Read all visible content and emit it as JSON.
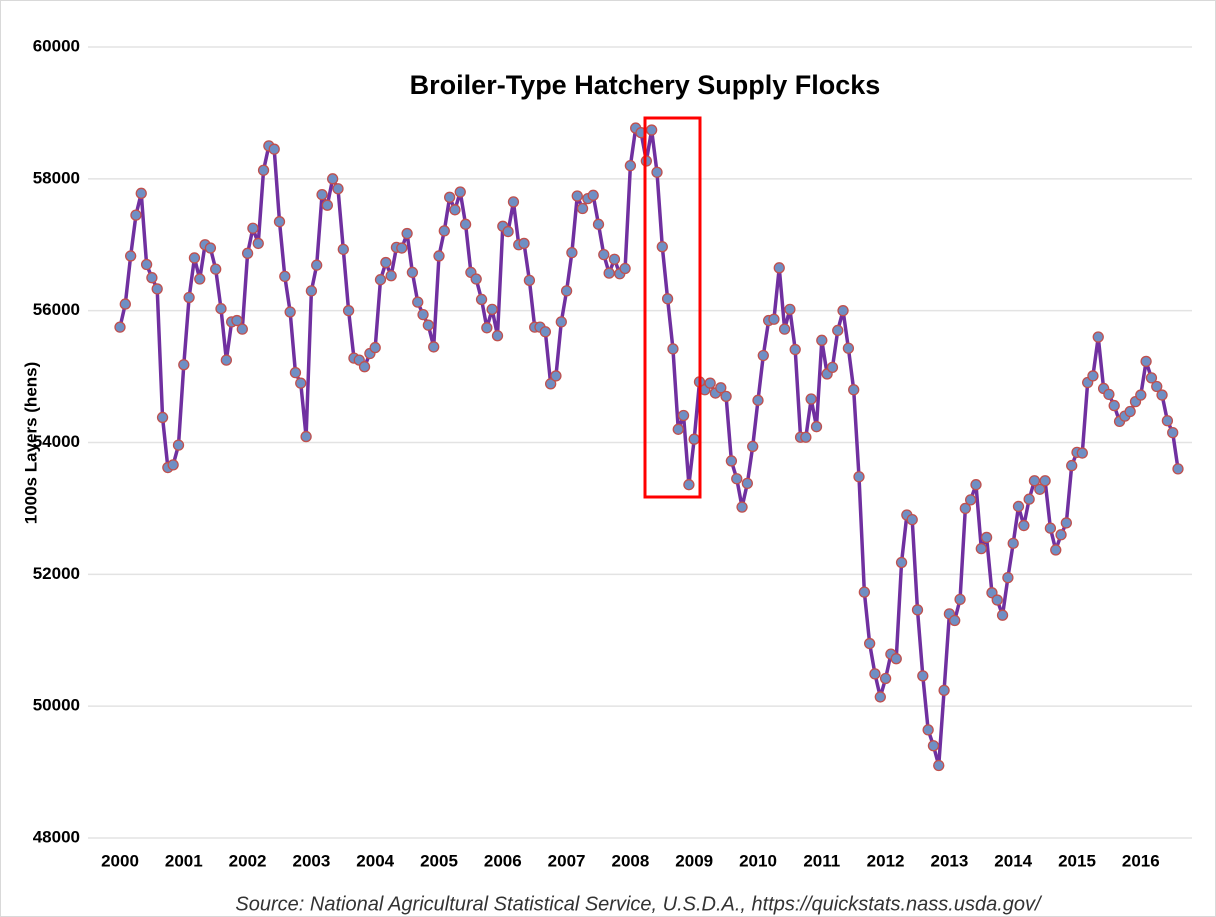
{
  "chart_data": {
    "type": "line",
    "title": "Broiler-Type Hatchery Supply Flocks",
    "y_label": "1000s Layers (hens)",
    "source": "Source: National Agricultural Statistical Service, U.S.D.A., https://quickstats.nass.usda.gov/",
    "xlim": [
      2000,
      2016.75
    ],
    "xticks": [
      2000,
      2001,
      2002,
      2003,
      2004,
      2005,
      2006,
      2007,
      2008,
      2009,
      2010,
      2011,
      2012,
      2013,
      2014,
      2015,
      2016
    ],
    "ylim": [
      48000,
      60000
    ],
    "yticks": [
      48000,
      50000,
      52000,
      54000,
      56000,
      58000,
      60000
    ],
    "grid": true,
    "x": [
      2000,
      2000.083,
      2000.167,
      2000.25,
      2000.333,
      2000.417,
      2000.5,
      2000.583,
      2000.667,
      2000.75,
      2000.833,
      2000.917,
      2001,
      2001.083,
      2001.167,
      2001.25,
      2001.333,
      2001.417,
      2001.5,
      2001.583,
      2001.667,
      2001.75,
      2001.833,
      2001.917,
      2002,
      2002.083,
      2002.167,
      2002.25,
      2002.333,
      2002.417,
      2002.5,
      2002.583,
      2002.667,
      2002.75,
      2002.833,
      2002.917,
      2003,
      2003.083,
      2003.167,
      2003.25,
      2003.333,
      2003.417,
      2003.5,
      2003.583,
      2003.667,
      2003.75,
      2003.833,
      2003.917,
      2004,
      2004.083,
      2004.167,
      2004.25,
      2004.333,
      2004.417,
      2004.5,
      2004.583,
      2004.667,
      2004.75,
      2004.833,
      2004.917,
      2005,
      2005.083,
      2005.167,
      2005.25,
      2005.333,
      2005.417,
      2005.5,
      2005.583,
      2005.667,
      2005.75,
      2005.833,
      2005.917,
      2006,
      2006.083,
      2006.167,
      2006.25,
      2006.333,
      2006.417,
      2006.5,
      2006.583,
      2006.667,
      2006.75,
      2006.833,
      2006.917,
      2007,
      2007.083,
      2007.167,
      2007.25,
      2007.333,
      2007.417,
      2007.5,
      2007.583,
      2007.667,
      2007.75,
      2007.833,
      2007.917,
      2008,
      2008.083,
      2008.167,
      2008.25,
      2008.333,
      2008.417,
      2008.5,
      2008.583,
      2008.667,
      2008.75,
      2008.833,
      2008.917,
      2009,
      2009.083,
      2009.167,
      2009.25,
      2009.333,
      2009.417,
      2009.5,
      2009.583,
      2009.667,
      2009.75,
      2009.833,
      2009.917,
      2010,
      2010.083,
      2010.167,
      2010.25,
      2010.333,
      2010.417,
      2010.5,
      2010.583,
      2010.667,
      2010.75,
      2010.833,
      2010.917,
      2011,
      2011.083,
      2011.167,
      2011.25,
      2011.333,
      2011.417,
      2011.5,
      2011.583,
      2011.667,
      2011.75,
      2011.833,
      2011.917,
      2012,
      2012.083,
      2012.167,
      2012.25,
      2012.333,
      2012.417,
      2012.5,
      2012.583,
      2012.667,
      2012.75,
      2012.833,
      2012.917,
      2013,
      2013.083,
      2013.167,
      2013.25,
      2013.333,
      2013.417,
      2013.5,
      2013.583,
      2013.667,
      2013.75,
      2013.833,
      2013.917,
      2014,
      2014.083,
      2014.167,
      2014.25,
      2014.333,
      2014.417,
      2014.5,
      2014.583,
      2014.667,
      2014.75,
      2014.833,
      2014.917,
      2015,
      2015.083,
      2015.167,
      2015.25,
      2015.333,
      2015.417,
      2015.5,
      2015.583,
      2015.667,
      2015.75,
      2015.833,
      2015.917,
      2016,
      2016.083,
      2016.167,
      2016.25,
      2016.333,
      2016.417,
      2016.5,
      2016.583
    ],
    "series": [
      {
        "color": "#7030a0",
        "marker_color": "#6f8fc4",
        "marker_edge": "#c0504d",
        "values": [
          55750,
          56100,
          56830,
          57450,
          57780,
          56700,
          56500,
          56330,
          54380,
          53620,
          53660,
          53960,
          55180,
          56200,
          56800,
          56480,
          57000,
          56950,
          56630,
          56030,
          55250,
          55830,
          55850,
          55720,
          56870,
          57250,
          57020,
          58130,
          58500,
          58450,
          57350,
          56520,
          55980,
          55060,
          54900,
          54090,
          56300,
          56690,
          57760,
          57600,
          58000,
          57850,
          56930,
          56000,
          55280,
          55250,
          55150,
          55350,
          55440,
          56470,
          56730,
          56530,
          56960,
          56950,
          57170,
          56580,
          56130,
          55940,
          55780,
          55450,
          56830,
          57210,
          57720,
          57530,
          57800,
          57310,
          56580,
          56480,
          56170,
          55740,
          56020,
          55620,
          57280,
          57200,
          57650,
          57000,
          57020,
          56460,
          55750,
          55750,
          55680,
          54890,
          55010,
          55830,
          56300,
          56880,
          57740,
          57550,
          57700,
          57750,
          57310,
          56850,
          56570,
          56780,
          56560,
          56640,
          58200,
          58770,
          58700,
          58270,
          58740,
          58100,
          56970,
          56180,
          55420,
          54200,
          54410,
          53360,
          54050,
          54920,
          54800,
          54900,
          54750,
          54830,
          54700,
          53720,
          53450,
          53020,
          53380,
          53940,
          54640,
          55320,
          55850,
          55870,
          56650,
          55720,
          56020,
          55410,
          54080,
          54080,
          54660,
          54240,
          55550,
          55040,
          55140,
          55700,
          56000,
          55430,
          54800,
          53480,
          51730,
          50950,
          50490,
          50140,
          50420,
          50790,
          50720,
          52180,
          52900,
          52830,
          51460,
          50460,
          49640,
          49400,
          49100,
          50240,
          51400,
          51300,
          51620,
          53000,
          53130,
          53360,
          52390,
          52560,
          51720,
          51610,
          51380,
          51950,
          52470,
          53030,
          52740,
          53140,
          53420,
          53290,
          53420,
          52700,
          52370,
          52600,
          52780,
          53650,
          53850,
          53840,
          54910,
          55010,
          55600,
          54820,
          54730,
          54560,
          54320,
          54400,
          54470,
          54620,
          54720,
          55230,
          54980,
          54850,
          54720,
          54330,
          54150,
          53600
        ]
      }
    ]
  }
}
